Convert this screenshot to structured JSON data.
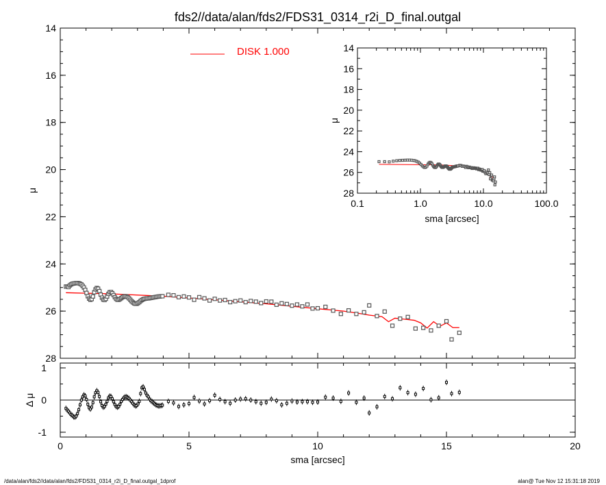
{
  "title": "fds2//data/alan/fds2/FDS31_0314_r2i_D_final.outgal",
  "footer_left": "/data/alan/fds2//data/alan/fds2/FDS31_0314_r2i_D_final.outgal_1dprof",
  "footer_right": "alan@  Tue Nov 12 15:31:18 2019",
  "colors": {
    "model": "#ff0000",
    "data": "#000000",
    "marker": "#555555"
  },
  "chart_data": [
    {
      "name": "profile",
      "type": "scatter",
      "ylabel": "μ",
      "xlabel": "",
      "xlim": [
        0,
        20
      ],
      "ylim": [
        28,
        14
      ],
      "y_inverted": true,
      "xticks": [
        "0",
        "5",
        "10",
        "15",
        "20"
      ],
      "yticks": [
        "14",
        "16",
        "18",
        "20",
        "22",
        "24",
        "26",
        "28"
      ],
      "legend": {
        "label": "DISK  1.000",
        "position": "top-center"
      },
      "series": [
        {
          "name": "DISK  1.000",
          "kind": "line",
          "x": [
            0.22,
            2.0,
            4.0,
            6.0,
            8.0,
            10.0,
            11.0,
            11.5,
            12.0,
            12.5,
            12.75,
            13.0,
            13.25,
            13.5,
            13.75,
            14.0,
            14.25,
            14.5,
            14.75,
            15.0,
            15.25,
            15.5
          ],
          "y": [
            25.22,
            25.27,
            25.37,
            25.52,
            25.69,
            25.9,
            26.0,
            26.08,
            26.17,
            26.24,
            26.45,
            26.3,
            26.33,
            26.36,
            26.39,
            26.5,
            26.72,
            26.45,
            26.64,
            26.5,
            26.7,
            26.7
          ]
        },
        {
          "name": "data",
          "kind": "markers",
          "x": [
            0.22,
            0.27,
            0.32,
            0.37,
            0.42,
            0.47,
            0.52,
            0.57,
            0.62,
            0.67,
            0.72,
            0.77,
            0.82,
            0.87,
            0.92,
            0.97,
            1.02,
            1.07,
            1.12,
            1.17,
            1.22,
            1.27,
            1.32,
            1.37,
            1.42,
            1.47,
            1.52,
            1.57,
            1.62,
            1.67,
            1.72,
            1.77,
            1.82,
            1.87,
            1.92,
            1.97,
            2.02,
            2.07,
            2.12,
            2.17,
            2.22,
            2.27,
            2.32,
            2.37,
            2.42,
            2.47,
            2.52,
            2.57,
            2.62,
            2.67,
            2.72,
            2.77,
            2.82,
            2.87,
            2.92,
            2.97,
            3.02,
            3.07,
            3.12,
            3.17,
            3.22,
            3.27,
            3.32,
            3.37,
            3.42,
            3.47,
            3.52,
            3.57,
            3.62,
            3.67,
            3.72,
            3.77,
            3.82,
            3.87,
            3.92,
            3.97,
            4.2,
            4.4,
            4.6,
            4.8,
            5.0,
            5.2,
            5.4,
            5.6,
            5.8,
            6.0,
            6.2,
            6.4,
            6.6,
            6.8,
            7.0,
            7.2,
            7.4,
            7.6,
            7.8,
            8.0,
            8.2,
            8.4,
            8.6,
            8.8,
            9.0,
            9.2,
            9.4,
            9.6,
            9.8,
            10.0,
            10.3,
            10.6,
            10.9,
            11.2,
            11.5,
            11.8,
            12.0,
            12.3,
            12.6,
            12.9,
            13.2,
            13.5,
            13.8,
            14.1,
            14.4,
            14.7,
            15.0,
            15.2,
            15.5
          ],
          "y": [
            24.96,
            24.96,
            24.98,
            24.91,
            24.87,
            24.84,
            24.83,
            24.82,
            24.81,
            24.81,
            24.82,
            24.84,
            24.87,
            24.93,
            25.0,
            25.1,
            25.23,
            25.37,
            25.47,
            25.52,
            25.49,
            25.38,
            25.2,
            25.08,
            25.02,
            25.05,
            25.15,
            25.3,
            25.43,
            25.51,
            25.53,
            25.48,
            25.38,
            25.27,
            25.2,
            25.19,
            25.24,
            25.32,
            25.41,
            25.48,
            25.52,
            25.52,
            25.49,
            25.45,
            25.41,
            25.38,
            25.37,
            25.38,
            25.41,
            25.46,
            25.52,
            25.58,
            25.63,
            25.67,
            25.69,
            25.69,
            25.66,
            25.62,
            25.57,
            25.53,
            25.5,
            25.48,
            25.47,
            25.46,
            25.46,
            25.45,
            25.44,
            25.43,
            25.42,
            25.41,
            25.4,
            25.39,
            25.38,
            25.38,
            25.37,
            25.37,
            25.31,
            25.33,
            25.41,
            25.38,
            25.42,
            25.52,
            25.41,
            25.46,
            25.55,
            25.48,
            25.55,
            25.53,
            25.62,
            25.58,
            25.55,
            25.62,
            25.57,
            25.6,
            25.66,
            25.59,
            25.6,
            25.73,
            25.67,
            25.7,
            25.77,
            25.72,
            25.8,
            25.72,
            25.89,
            25.88,
            25.82,
            25.98,
            26.12,
            25.97,
            26.12,
            26.05,
            25.76,
            26.21,
            26.02,
            26.62,
            26.32,
            26.25,
            26.74,
            26.71,
            26.82,
            26.62,
            26.43,
            27.2,
            26.92
          ]
        }
      ]
    },
    {
      "name": "residual",
      "type": "scatter",
      "xlabel": "sma [arcsec]",
      "ylabel": "Δ μ",
      "xlim": [
        0,
        20
      ],
      "ylim": [
        -1.15,
        1.15
      ],
      "xticks": [
        "0",
        "5",
        "10",
        "15",
        "20"
      ],
      "yticks": [
        "1",
        "0",
        "-1"
      ],
      "zero_line": true,
      "series": [
        {
          "name": "residual",
          "kind": "points",
          "x": [
            0.22,
            0.27,
            0.32,
            0.37,
            0.42,
            0.47,
            0.52,
            0.57,
            0.62,
            0.67,
            0.72,
            0.77,
            0.82,
            0.87,
            0.92,
            0.97,
            1.02,
            1.07,
            1.12,
            1.17,
            1.22,
            1.27,
            1.32,
            1.37,
            1.42,
            1.47,
            1.52,
            1.57,
            1.62,
            1.67,
            1.72,
            1.77,
            1.82,
            1.87,
            1.92,
            1.97,
            2.02,
            2.07,
            2.12,
            2.17,
            2.22,
            2.27,
            2.32,
            2.37,
            2.42,
            2.47,
            2.52,
            2.57,
            2.62,
            2.67,
            2.72,
            2.77,
            2.82,
            2.87,
            2.92,
            2.97,
            3.02,
            3.07,
            3.12,
            3.17,
            3.22,
            3.27,
            3.32,
            3.37,
            3.42,
            3.47,
            3.52,
            3.57,
            3.62,
            3.67,
            3.72,
            3.77,
            3.82,
            3.87,
            3.92,
            3.97,
            4.2,
            4.4,
            4.6,
            4.8,
            5.0,
            5.2,
            5.4,
            5.6,
            5.8,
            6.0,
            6.2,
            6.4,
            6.6,
            6.8,
            7.0,
            7.2,
            7.4,
            7.6,
            7.8,
            8.0,
            8.2,
            8.4,
            8.6,
            8.8,
            9.0,
            9.2,
            9.4,
            9.6,
            9.8,
            10.0,
            10.3,
            10.6,
            10.9,
            11.2,
            11.5,
            11.8,
            12.0,
            12.3,
            12.6,
            12.9,
            13.2,
            13.5,
            13.8,
            14.1,
            14.4,
            14.7,
            15.0,
            15.2,
            15.5
          ],
          "y": [
            -0.26,
            -0.31,
            -0.35,
            -0.4,
            -0.45,
            -0.48,
            -0.52,
            -0.53,
            -0.5,
            -0.42,
            -0.3,
            -0.15,
            0.0,
            0.1,
            0.16,
            0.13,
            0.02,
            -0.13,
            -0.24,
            -0.28,
            -0.22,
            -0.08,
            0.1,
            0.23,
            0.29,
            0.24,
            0.11,
            -0.05,
            -0.17,
            -0.22,
            -0.2,
            -0.13,
            -0.04,
            0.07,
            0.12,
            0.11,
            0.04,
            -0.05,
            -0.14,
            -0.2,
            -0.22,
            -0.2,
            -0.13,
            -0.04,
            0.02,
            0.07,
            0.1,
            0.1,
            0.08,
            0.05,
            0.0,
            -0.05,
            -0.1,
            -0.15,
            -0.18,
            -0.17,
            -0.12,
            -0.04,
            0.2,
            0.38,
            0.41,
            0.33,
            0.22,
            0.15,
            0.1,
            0.03,
            -0.02,
            -0.05,
            -0.09,
            -0.12,
            -0.15,
            -0.17,
            -0.18,
            -0.18,
            -0.17,
            -0.16,
            -0.04,
            -0.09,
            -0.2,
            -0.15,
            -0.11,
            0.08,
            -0.03,
            -0.12,
            -0.02,
            0.15,
            0.02,
            -0.05,
            -0.1,
            0.0,
            0.03,
            0.04,
            0.0,
            -0.05,
            -0.1,
            -0.07,
            0.03,
            -0.02,
            -0.15,
            -0.1,
            -0.03,
            -0.06,
            -0.05,
            -0.05,
            -0.07,
            -0.06,
            0.09,
            0.06,
            -0.04,
            0.22,
            -0.07,
            0.06,
            -0.4,
            -0.21,
            0.11,
            0.04,
            0.38,
            0.23,
            0.18,
            0.36,
            0.01,
            0.07,
            0.55,
            0.2,
            0.24
          ]
        }
      ]
    },
    {
      "name": "inset",
      "type": "scatter",
      "xlabel": "sma [arcsec]",
      "ylabel": "μ",
      "xscale": "log",
      "xlim": [
        0.1,
        100.0
      ],
      "ylim": [
        28,
        14
      ],
      "y_inverted": true,
      "xticks": [
        "0.1",
        "1.0",
        "10.0",
        "100.0"
      ],
      "yticks": [
        "14",
        "16",
        "18",
        "20",
        "22",
        "24",
        "26",
        "28"
      ],
      "series": [
        {
          "name": "DISK  1.000",
          "kind": "line",
          "ref": "profile.0"
        },
        {
          "name": "data",
          "kind": "markers",
          "ref": "profile.1"
        }
      ]
    }
  ]
}
